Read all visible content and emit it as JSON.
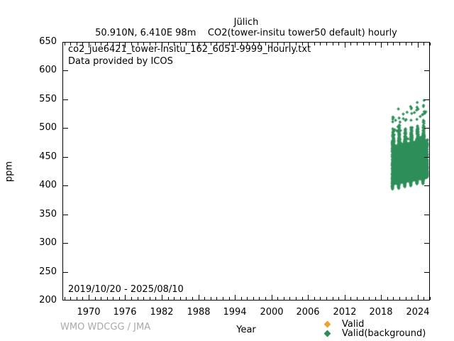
{
  "header": {
    "title": "Jülich",
    "subtitle": "50.910N, 6.410E 98m    CO2(tower-insitu tower50 default) hourly"
  },
  "plot_annotations": {
    "source_file": "co2_jue6421_tower-insitu_162_6051-9999_hourly.txt",
    "provider": "Data provided by ICOS",
    "date_range": "2019/10/20 - 2025/08/10"
  },
  "axes": {
    "xlabel": "Year",
    "ylabel": "ppm"
  },
  "footer": {
    "credit": "WMO WDCGG / JMA"
  },
  "legend": {
    "position": "bottom-right",
    "items": [
      {
        "label": "Valid",
        "color": "#efa22e",
        "marker": "diamond"
      },
      {
        "label": "Valid(background)",
        "color": "#2e8e5a",
        "marker": "diamond"
      }
    ]
  },
  "chart_data": {
    "type": "scatter",
    "title": "Jülich",
    "subtitle": "50.910N, 6.410E 98m    CO2(tower-insitu tower50 default) hourly",
    "xlabel": "Year",
    "ylabel": "ppm",
    "xlim": [
      1965.7,
      2026.0
    ],
    "ylim": [
      200,
      650
    ],
    "xticks": [
      1970,
      1976,
      1982,
      1988,
      1994,
      2000,
      2006,
      2012,
      2018,
      2024
    ],
    "xticks_minor_step_years": 1,
    "yticks": [
      200,
      250,
      300,
      350,
      400,
      450,
      500,
      550,
      600,
      650
    ],
    "grid": false,
    "series": [
      {
        "name": "Valid",
        "color": "#efa22e",
        "points": []
      },
      {
        "name": "Valid(background)",
        "color": "#2e8e5a",
        "description": "dense hourly CO2 cluster, ~395-552 ppm, rising mean, winter maxima spikes and summer minima dips",
        "cluster": {
          "t_start": 2019.8,
          "t_end": 2025.61,
          "n_points": 7500,
          "seed": 20191020,
          "base_bottom_ppm": 405,
          "growth_ppm_per_year": 2.1,
          "dense_top_ppm": 468,
          "winter_boost_ppm": 28,
          "summer_dip_ppm": 10,
          "value_min_ppm": 394,
          "outlier_max_ppm": 552,
          "marker_size_px": 2.3,
          "color": "#2e8e5a"
        }
      }
    ]
  }
}
